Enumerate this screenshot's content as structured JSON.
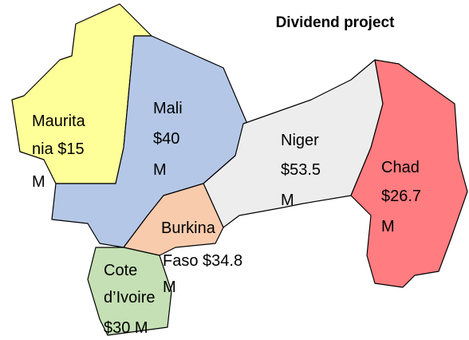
{
  "title": "Dividend project",
  "regions": [
    {
      "lines": [
        "Maurita",
        "nia $15",
        "M"
      ],
      "color": "#ffff99"
    },
    {
      "lines": [
        "Mali",
        "$40",
        "M"
      ],
      "color": "#b4c7e7"
    },
    {
      "lines": [
        "Niger",
        "$53.5",
        "M"
      ],
      "color": "#ededed"
    },
    {
      "lines": [
        "Chad",
        "$26.7",
        "M"
      ],
      "color": "#ff7c80"
    },
    {
      "lines": [
        "Burkina",
        "Faso $34.8",
        "M"
      ],
      "color": "#f8cbad"
    },
    {
      "lines": [
        "Cote",
        "d’Ivoire",
        "$30 M"
      ],
      "color": "#c5e0b4"
    }
  ]
}
